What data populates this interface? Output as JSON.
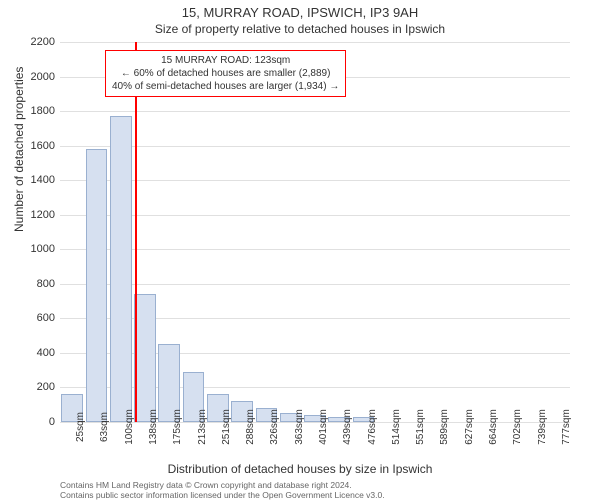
{
  "title": "15, MURRAY ROAD, IPSWICH, IP3 9AH",
  "subtitle": "Size of property relative to detached houses in Ipswich",
  "y_axis_label": "Number of detached properties",
  "x_axis_label": "Distribution of detached houses by size in Ipswich",
  "footer_line1": "Contains HM Land Registry data © Crown copyright and database right 2024.",
  "footer_line2": "Contains public sector information licensed under the Open Government Licence v3.0.",
  "annotation": {
    "line1": "15 MURRAY ROAD: 123sqm",
    "line2": "← 60% of detached houses are smaller (2,889)",
    "line3": "40% of semi-detached houses are larger (1,934) →"
  },
  "chart": {
    "type": "histogram",
    "background_color": "#ffffff",
    "grid_color": "#e0e0e0",
    "bar_fill": "#d6e0f0",
    "bar_border": "#9ab0d0",
    "marker_color": "#ff0000",
    "annotation_border": "#ff0000",
    "ylim": [
      0,
      2200
    ],
    "ytick_step": 200,
    "y_ticks": [
      0,
      200,
      400,
      600,
      800,
      1000,
      1200,
      1400,
      1600,
      1800,
      2000,
      2200
    ],
    "x_tick_labels": [
      "25sqm",
      "63sqm",
      "100sqm",
      "138sqm",
      "175sqm",
      "213sqm",
      "251sqm",
      "288sqm",
      "326sqm",
      "363sqm",
      "401sqm",
      "439sqm",
      "476sqm",
      "514sqm",
      "551sqm",
      "589sqm",
      "627sqm",
      "664sqm",
      "702sqm",
      "739sqm",
      "777sqm"
    ],
    "bar_heights": [
      160,
      1580,
      1770,
      740,
      450,
      290,
      160,
      120,
      80,
      50,
      40,
      30,
      28,
      0,
      0,
      0,
      0,
      0,
      0,
      0,
      0
    ],
    "marker_x_index": 2.6,
    "title_fontsize": 13,
    "subtitle_fontsize": 12,
    "axis_label_fontsize": 12,
    "tick_fontsize": 11,
    "x_tick_fontsize": 10,
    "annotation_fontsize": 10,
    "footer_fontsize": 8.5
  }
}
